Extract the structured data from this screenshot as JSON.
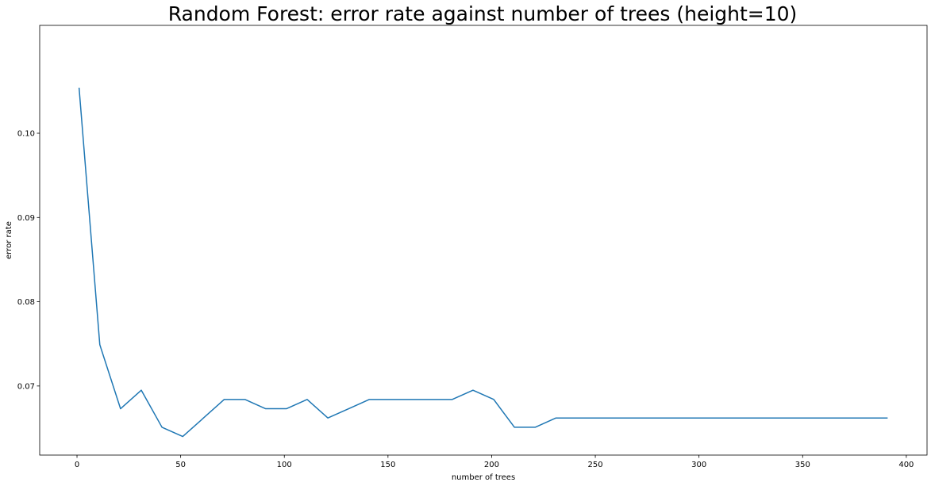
{
  "chart_data": {
    "type": "line",
    "title": "Random Forest: error rate against number of trees (height=10)",
    "xlabel": "number of trees",
    "ylabel": "error rate",
    "xlim": [
      -18,
      410
    ],
    "ylim": [
      0.0618,
      0.1128
    ],
    "xticks": [
      0,
      50,
      100,
      150,
      200,
      250,
      300,
      350,
      400
    ],
    "yticks": [
      0.07,
      0.08,
      0.09,
      0.1
    ],
    "ytick_labels": [
      "0.07",
      "0.08",
      "0.09",
      "0.10"
    ],
    "grid": false,
    "legend": "none",
    "series": [
      {
        "color": "#1f77b4",
        "x": [
          1,
          11,
          21,
          31,
          41,
          51,
          61,
          71,
          81,
          91,
          101,
          111,
          121,
          131,
          141,
          151,
          161,
          171,
          181,
          191,
          201,
          211,
          221,
          231,
          241,
          251,
          261,
          271,
          281,
          291,
          301,
          311,
          321,
          331,
          341,
          351,
          361,
          371,
          381,
          391
        ],
        "y": [
          0.1054,
          0.0749,
          0.0673,
          0.0695,
          0.0651,
          0.064,
          0.0662,
          0.0684,
          0.0684,
          0.0673,
          0.0673,
          0.0684,
          0.0662,
          0.0673,
          0.0684,
          0.0684,
          0.0684,
          0.0684,
          0.0684,
          0.0695,
          0.0684,
          0.0651,
          0.0651,
          0.0662,
          0.0662,
          0.0662,
          0.0662,
          0.0662,
          0.0662,
          0.0662,
          0.0662,
          0.0662,
          0.0662,
          0.0662,
          0.0662,
          0.0662,
          0.0662,
          0.0662,
          0.0662,
          0.0662
        ]
      }
    ]
  }
}
